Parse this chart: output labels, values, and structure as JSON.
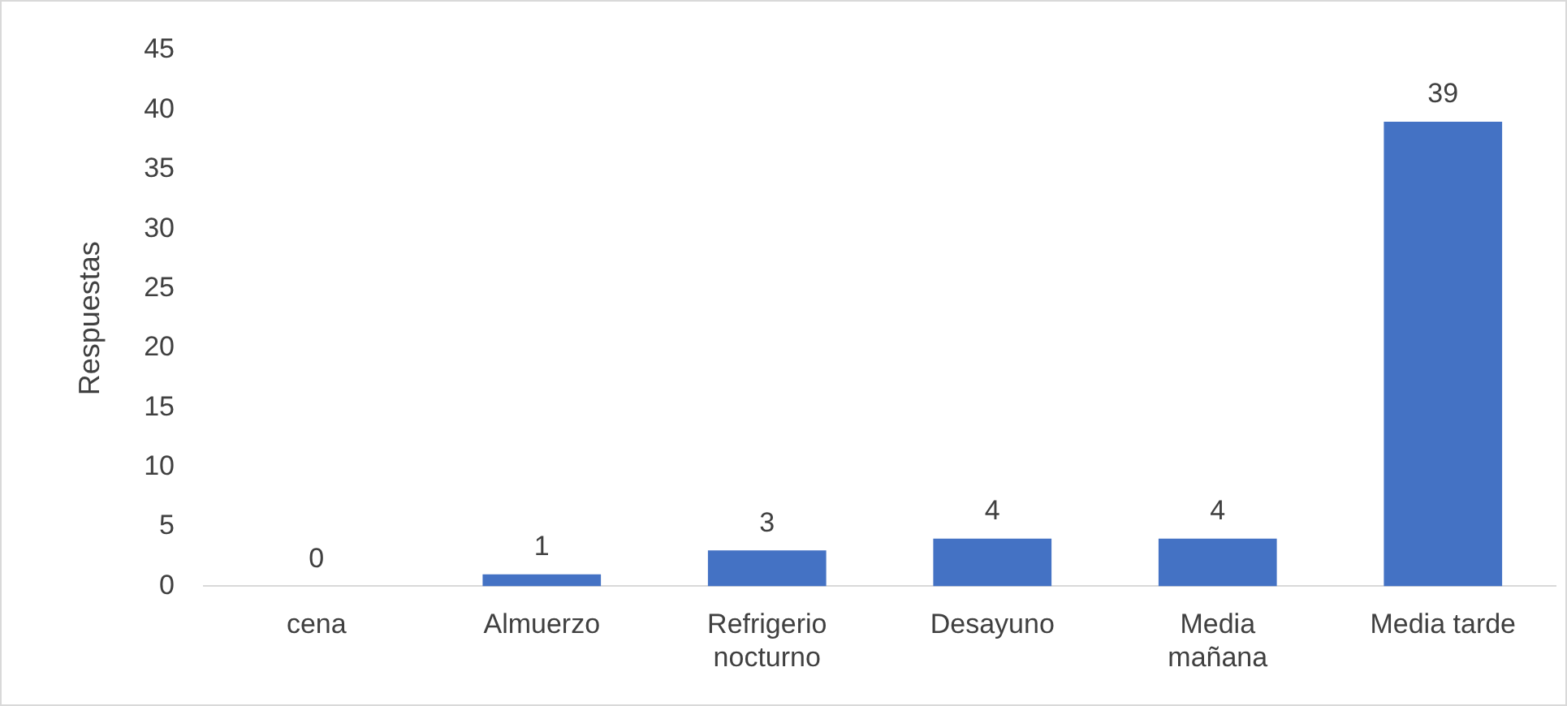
{
  "chart_data": {
    "type": "bar",
    "ylabel": "Respuestas",
    "categories": [
      "cena",
      "Almuerzo",
      "Refrigerio nocturno",
      "Desayuno",
      "Media mañana",
      "Media tarde"
    ],
    "values": [
      0,
      1,
      3,
      4,
      4,
      39
    ],
    "color": "#4472c4",
    "ylim": [
      0,
      45
    ],
    "yticks": [
      0,
      5,
      10,
      15,
      20,
      25,
      30,
      35,
      40,
      45
    ],
    "grid": false,
    "legend": false,
    "data_labels": true
  }
}
